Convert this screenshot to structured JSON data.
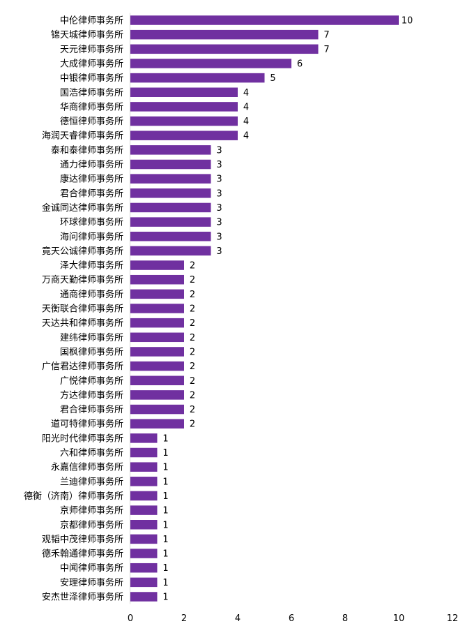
{
  "chart_data": {
    "type": "bar",
    "orientation": "horizontal",
    "bar_color": "#7030a0",
    "categories": [
      "中伦律师事务所",
      "锦天城律师事务所",
      "天元律师事务所",
      "大成律师事务所",
      "中银律师事务所",
      "国浩律师事务所",
      "华商律师事务所",
      "德恒律师事务所",
      "海润天睿律师事务所",
      "泰和泰律师事务所",
      "通力律师事务所",
      "康达律师事务所",
      "君合律师事务所",
      "金诚同达律师事务所",
      "环球律师事务所",
      "海问律师事务所",
      "竟天公诚律师事务所",
      "泽大律师事务所",
      "万商天勤律师事务所",
      "通商律师事务所",
      "天衡联合律师事务所",
      "天达共和律师事务所",
      "建纬律师事务所",
      "国枫律师事务所",
      "广信君达律师事务所",
      "广悦律师事务所",
      "方达律师事务所",
      "君合律师事务所",
      "道可特律师事务所",
      "阳光时代律师事务所",
      "六和律师事务所",
      "永嘉信律师事务所",
      "兰迪律师事务所",
      "德衡（济南）律师事务所",
      "京师律师事务所",
      "京都律师事务所",
      "观韬中茂律师事务所",
      "德禾翰通律师事务所",
      "中闻律师事务所",
      "安理律师事务所",
      "安杰世泽律师事务所"
    ],
    "values": [
      10,
      7,
      7,
      6,
      5,
      4,
      4,
      4,
      4,
      3,
      3,
      3,
      3,
      3,
      3,
      3,
      3,
      2,
      2,
      2,
      2,
      2,
      2,
      2,
      2,
      2,
      2,
      2,
      2,
      1,
      1,
      1,
      1,
      1,
      1,
      1,
      1,
      1,
      1,
      1,
      1
    ],
    "xlim": [
      0,
      12
    ],
    "xticks": [
      "0",
      "2",
      "4",
      "6",
      "8",
      "10",
      "12"
    ],
    "title": "",
    "xlabel": "",
    "ylabel": "",
    "grid": false,
    "legend": "none"
  }
}
